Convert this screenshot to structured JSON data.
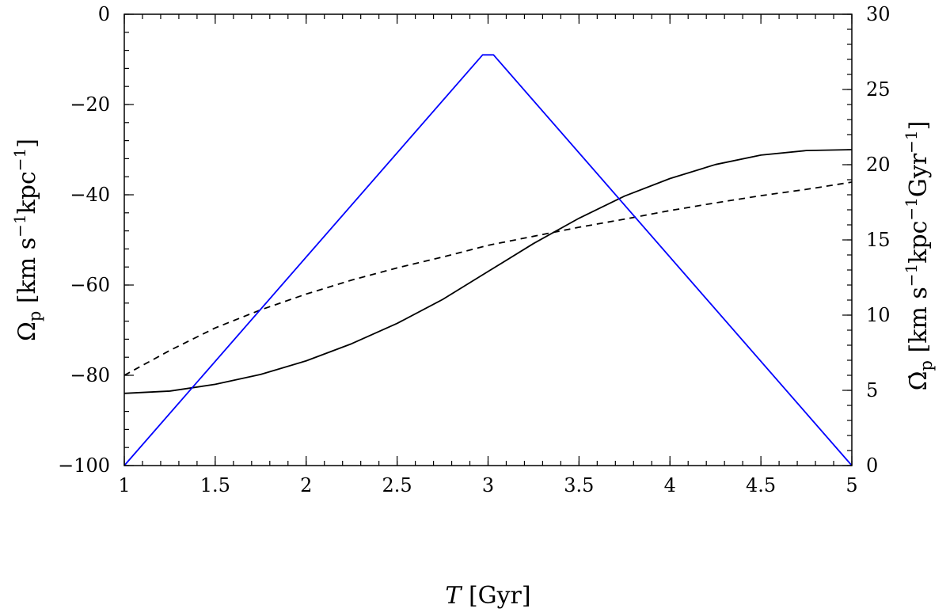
{
  "chart_data": {
    "type": "line",
    "x_axis": {
      "label_symbol": "T",
      "label_unit": "[Gyr]",
      "range": [
        1,
        5
      ],
      "ticks": [
        "1",
        "1.5",
        "2",
        "2.5",
        "3",
        "3.5",
        "4",
        "4.5",
        "5"
      ]
    },
    "y_axis_left": {
      "label_symbol": "Ω",
      "label_subscript": "p",
      "label_unit_parts": [
        "[km s",
        "−1",
        "kpc",
        "−1",
        "]"
      ],
      "range": [
        -100,
        0
      ],
      "ticks": [
        "−100",
        "−80",
        "−60",
        "−40",
        "−20",
        "0"
      ],
      "color": "#000000"
    },
    "y_axis_right": {
      "label_symbol": "Ω̇",
      "label_subscript": "p",
      "label_unit_parts": [
        "[km s",
        "−1",
        "kpc",
        "−1",
        "Gyr",
        "−1",
        "]"
      ],
      "range": [
        0,
        30
      ],
      "ticks": [
        "0",
        "5",
        "10",
        "15",
        "20",
        "25",
        "30"
      ],
      "color": "#0000ff"
    },
    "grid": false,
    "legend": "none",
    "series": [
      {
        "axis": "left",
        "style": "solid",
        "color": "#000000",
        "x": [
          1.0,
          1.25,
          1.5,
          1.75,
          2.0,
          2.25,
          2.5,
          2.75,
          3.0,
          3.25,
          3.5,
          3.75,
          4.0,
          4.25,
          4.5,
          4.75,
          5.0
        ],
        "y": [
          -84.0,
          -83.5,
          -82.0,
          -79.8,
          -76.8,
          -73.0,
          -68.5,
          -63.2,
          -57.0,
          -50.8,
          -45.2,
          -40.3,
          -36.4,
          -33.3,
          -31.2,
          -30.2,
          -30.0
        ]
      },
      {
        "axis": "left",
        "style": "dashed",
        "color": "#000000",
        "x": [
          1.0,
          1.25,
          1.5,
          1.75,
          2.0,
          2.25,
          2.5,
          2.75,
          3.0,
          3.25,
          3.5,
          3.75,
          4.0,
          4.25,
          4.5,
          4.75,
          5.0
        ],
        "y": [
          -80.0,
          -74.5,
          -69.5,
          -65.5,
          -62.0,
          -58.9,
          -56.2,
          -53.8,
          -51.2,
          -49.2,
          -47.2,
          -45.4,
          -43.5,
          -41.8,
          -40.2,
          -38.8,
          -37.2
        ]
      },
      {
        "axis": "right",
        "style": "solid",
        "color": "#0000ff",
        "x": [
          1.0,
          2.97,
          3.03,
          5.0
        ],
        "y": [
          0,
          27.3,
          27.3,
          0
        ]
      }
    ]
  }
}
